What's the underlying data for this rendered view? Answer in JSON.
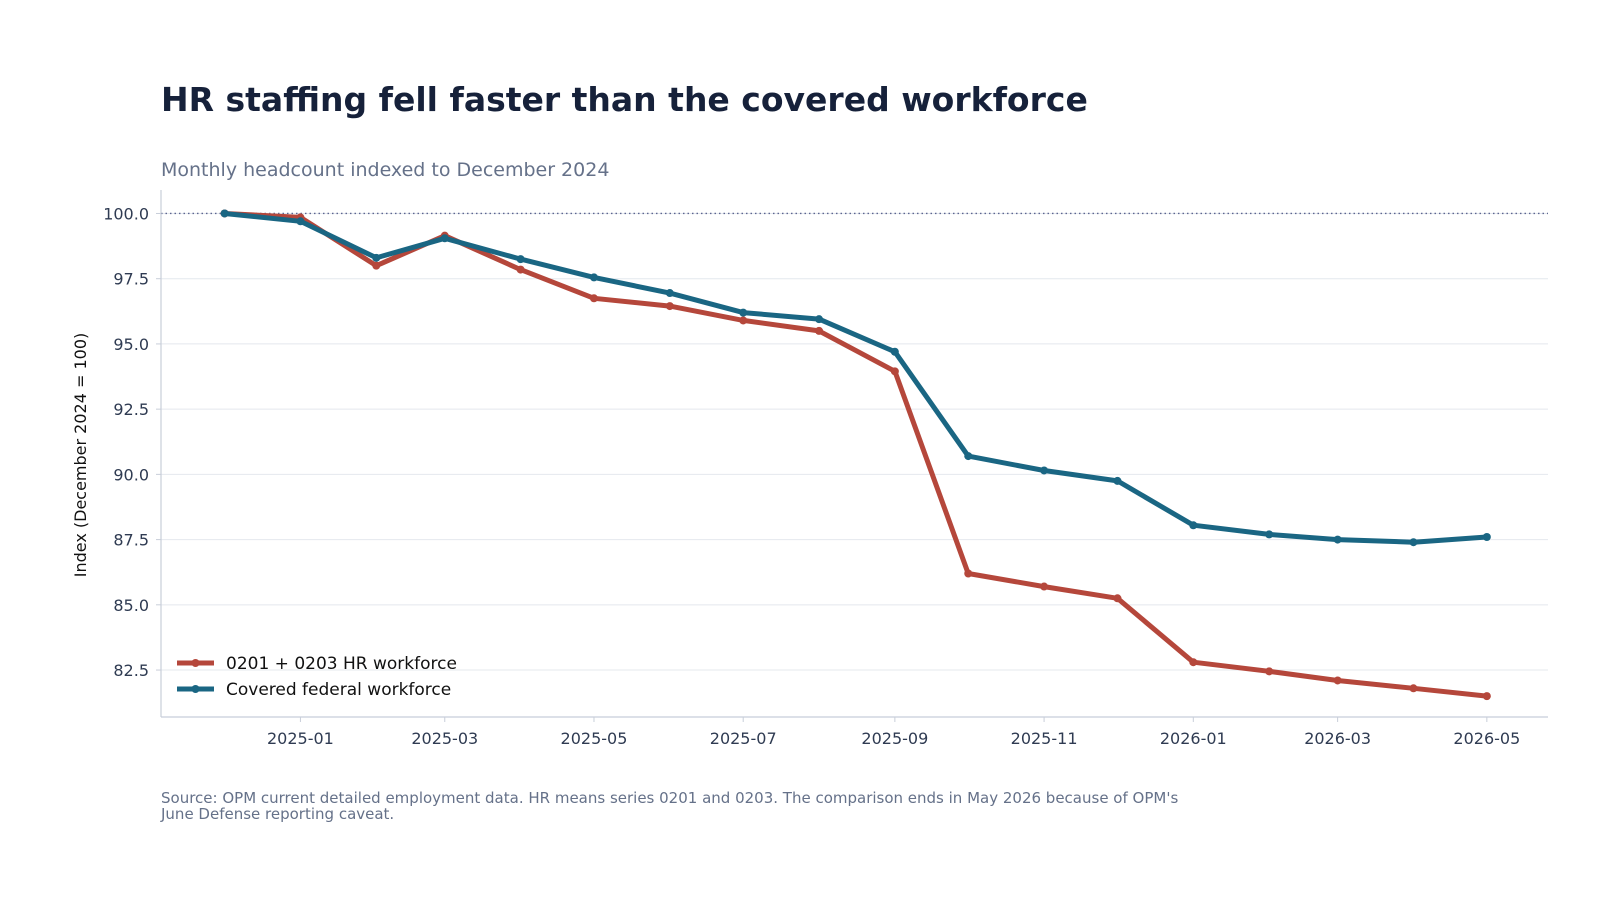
{
  "chart_data": {
    "type": "line",
    "title": "HR staffing fell faster than the covered workforce",
    "subtitle": "Monthly headcount indexed to December 2024",
    "ylabel": "Index (December 2024 = 100)",
    "xlabel": "",
    "source": "Source: OPM current detailed employment data. HR means series 0201 and 0203. The comparison ends in May 2026 because of OPM's June Defense reporting caveat.",
    "x": [
      "2024-12",
      "2025-01",
      "2025-02",
      "2025-03",
      "2025-04",
      "2025-05",
      "2025-06",
      "2025-07",
      "2025-08",
      "2025-09",
      "2025-10",
      "2025-11",
      "2025-12",
      "2026-01",
      "2026-02",
      "2026-03",
      "2026-04",
      "2026-05"
    ],
    "x_ticks": [
      "2025-01",
      "2025-03",
      "2025-05",
      "2025-07",
      "2025-09",
      "2025-11",
      "2026-01",
      "2026-03",
      "2026-05"
    ],
    "y_ticks": [
      "100.0",
      "97.5",
      "95.0",
      "92.5",
      "90.0",
      "87.5",
      "85.0",
      "82.5"
    ],
    "ylim": [
      80.7,
      100.9
    ],
    "xlim": [
      "2024-11-05",
      "2026-05-26"
    ],
    "grid": "horizontal",
    "reference_line": {
      "y": 100,
      "style": "dotted"
    },
    "legend_position": "lower-left",
    "series": [
      {
        "name": "0201 + 0203 HR workforce",
        "color": "#b5473b",
        "values": [
          100.0,
          99.85,
          98.0,
          99.15,
          97.85,
          96.75,
          96.45,
          95.9,
          95.5,
          93.95,
          86.2,
          85.7,
          85.25,
          82.8,
          82.45,
          82.1,
          81.8,
          81.5
        ]
      },
      {
        "name": "Covered federal workforce",
        "color": "#1a6683",
        "values": [
          100.0,
          99.7,
          98.3,
          99.05,
          98.25,
          97.55,
          96.95,
          96.2,
          95.95,
          94.7,
          90.7,
          90.15,
          89.75,
          88.05,
          87.7,
          87.5,
          87.4,
          87.6
        ]
      }
    ]
  }
}
